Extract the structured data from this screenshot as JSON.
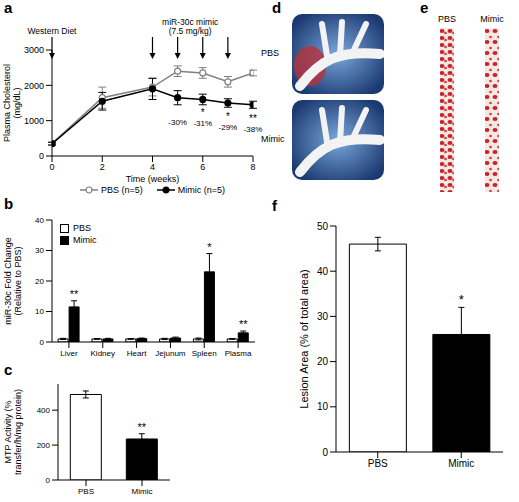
{
  "chart_data": [
    {
      "panel": "a",
      "type": "line",
      "xlabel": "Time (weeks)",
      "ylabel": "Plasma Cholesterol (mg/dL)",
      "x": [
        0,
        2,
        4,
        5,
        6,
        7,
        8
      ],
      "xlim": [
        0,
        8
      ],
      "xticks": [
        0,
        2,
        4,
        6,
        8
      ],
      "ylim": [
        0,
        3000
      ],
      "yticks": [
        0,
        1000,
        2000,
        3000
      ],
      "series": [
        {
          "name": "PBS (n=5)",
          "color": "#808080",
          "marker": "open_circle",
          "values": [
            350,
            1650,
            1950,
            2400,
            2350,
            2100,
            2350
          ],
          "errors": [
            40,
            300,
            250,
            150,
            150,
            150,
            80
          ]
        },
        {
          "name": "Mimic (n=5)",
          "color": "#000000",
          "marker": "filled_circle",
          "values": [
            350,
            1550,
            1900,
            1650,
            1600,
            1500,
            1450
          ],
          "errors": [
            40,
            250,
            300,
            200,
            150,
            120,
            100
          ],
          "significance": [
            null,
            null,
            null,
            null,
            "*",
            "*",
            "**"
          ],
          "percent_change_labels": [
            null,
            null,
            null,
            "-30%",
            "-31%",
            "-29%",
            "-38%"
          ]
        }
      ],
      "annotations": [
        {
          "text": "Western Diet",
          "x": [
            0
          ]
        },
        {
          "text": "miR-30c mimic (7.5 mg/kg)",
          "x": [
            4,
            5,
            6,
            7
          ]
        }
      ],
      "legend": "bottom"
    },
    {
      "panel": "b",
      "type": "bar",
      "ylabel": "miR-30c Fold Change (Relative to PBS)",
      "categories": [
        "Liver",
        "Kidney",
        "Heart",
        "Jejunum",
        "Spleen",
        "Plasma"
      ],
      "ylim": [
        0,
        40
      ],
      "yticks": [
        0,
        10,
        20,
        30,
        40
      ],
      "series": [
        {
          "name": "PBS",
          "color": "#ffffff",
          "values": [
            1,
            1,
            1,
            1,
            1,
            1
          ],
          "errors": [
            0.2,
            0.1,
            0.1,
            0.2,
            0.3,
            0.1
          ]
        },
        {
          "name": "Mimic",
          "color": "#000000",
          "values": [
            11.5,
            1,
            1.1,
            1.3,
            23,
            3
          ],
          "errors": [
            2,
            0.2,
            0.2,
            0.3,
            6,
            0.6
          ],
          "significance": [
            "**",
            null,
            null,
            null,
            "*",
            "**"
          ]
        }
      ],
      "legend": "upper left"
    },
    {
      "panel": "c",
      "type": "bar",
      "ylabel": "MTP Activity (% transfer/h/mg protein)",
      "categories": [
        "PBS",
        "Mimic"
      ],
      "values": [
        490,
        235
      ],
      "errors": [
        20,
        30
      ],
      "colors": [
        "#ffffff",
        "#000000"
      ],
      "significance": [
        null,
        "**"
      ],
      "ylim": [
        0,
        550
      ],
      "yticks": [
        0,
        200,
        400
      ]
    },
    {
      "panel": "f",
      "type": "bar",
      "ylabel": "Lesion Area (% of total area)",
      "categories": [
        "PBS",
        "Mimic"
      ],
      "values": [
        46,
        26
      ],
      "errors": [
        1.5,
        6
      ],
      "colors": [
        "#ffffff",
        "#000000"
      ],
      "significance": [
        null,
        "*"
      ],
      "ylim": [
        0,
        50
      ],
      "yticks": [
        0,
        10,
        20,
        30,
        40,
        50
      ]
    }
  ],
  "images": [
    {
      "panel": "d",
      "labels": [
        "PBS",
        "Mimic"
      ]
    },
    {
      "panel": "e",
      "labels": [
        "PBS",
        "Mimic"
      ]
    }
  ]
}
